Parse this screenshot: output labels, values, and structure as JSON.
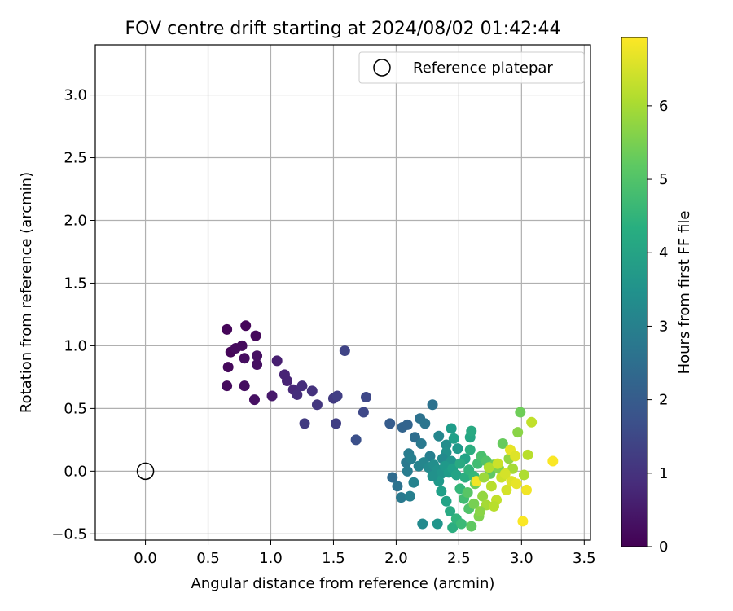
{
  "chart_data": {
    "type": "scatter",
    "title": "FOV centre drift starting at 2024/08/02 01:42:44",
    "xlabel": "Angular distance from reference (arcmin)",
    "ylabel": "Rotation from reference (arcmin)",
    "xlim": [
      -0.4,
      3.55
    ],
    "ylim": [
      -0.55,
      3.4
    ],
    "xticks": [
      "0.0",
      "0.5",
      "1.0",
      "1.5",
      "2.0",
      "2.5",
      "3.0",
      "3.5"
    ],
    "yticks": [
      "−0.5",
      "0.0",
      "0.5",
      "1.0",
      "1.5",
      "2.0",
      "2.5",
      "3.0"
    ],
    "grid": true,
    "legend": {
      "placement": "top-right",
      "entries": [
        "Reference platepar"
      ]
    },
    "reference_point": {
      "x": 0.0,
      "y": 0.0,
      "label": "Reference platepar"
    },
    "colorbar": {
      "label": "Hours from first FF file",
      "min": 0,
      "max": 6.93,
      "ticks": [
        "0",
        "1",
        "2",
        "3",
        "4",
        "5",
        "6"
      ],
      "colormap": "viridis"
    },
    "points": [
      {
        "x": 0.65,
        "y": 1.13,
        "h": 0.1
      },
      {
        "x": 0.8,
        "y": 1.16,
        "h": 0.1
      },
      {
        "x": 0.88,
        "y": 1.08,
        "h": 0.15
      },
      {
        "x": 0.68,
        "y": 0.95,
        "h": 0.1
      },
      {
        "x": 0.72,
        "y": 0.98,
        "h": 0.2
      },
      {
        "x": 0.77,
        "y": 1.0,
        "h": 0.2
      },
      {
        "x": 0.79,
        "y": 0.9,
        "h": 0.25
      },
      {
        "x": 0.89,
        "y": 0.92,
        "h": 0.3
      },
      {
        "x": 0.89,
        "y": 0.85,
        "h": 0.3
      },
      {
        "x": 0.66,
        "y": 0.83,
        "h": 0.15
      },
      {
        "x": 0.65,
        "y": 0.68,
        "h": 0.2
      },
      {
        "x": 0.79,
        "y": 0.68,
        "h": 0.25
      },
      {
        "x": 0.87,
        "y": 0.57,
        "h": 0.3
      },
      {
        "x": 1.01,
        "y": 0.6,
        "h": 0.5
      },
      {
        "x": 1.05,
        "y": 0.88,
        "h": 0.6
      },
      {
        "x": 1.11,
        "y": 0.77,
        "h": 0.7
      },
      {
        "x": 1.13,
        "y": 0.72,
        "h": 0.7
      },
      {
        "x": 1.18,
        "y": 0.65,
        "h": 0.8
      },
      {
        "x": 1.21,
        "y": 0.61,
        "h": 0.9
      },
      {
        "x": 1.25,
        "y": 0.68,
        "h": 0.9
      },
      {
        "x": 1.33,
        "y": 0.64,
        "h": 1.0
      },
      {
        "x": 1.37,
        "y": 0.53,
        "h": 1.1
      },
      {
        "x": 1.27,
        "y": 0.38,
        "h": 1.2
      },
      {
        "x": 1.5,
        "y": 0.58,
        "h": 1.2
      },
      {
        "x": 1.53,
        "y": 0.6,
        "h": 1.3
      },
      {
        "x": 1.52,
        "y": 0.38,
        "h": 1.3
      },
      {
        "x": 1.59,
        "y": 0.96,
        "h": 1.4
      },
      {
        "x": 1.74,
        "y": 0.47,
        "h": 1.5
      },
      {
        "x": 1.76,
        "y": 0.59,
        "h": 1.5
      },
      {
        "x": 1.68,
        "y": 0.25,
        "h": 1.7
      },
      {
        "x": 1.95,
        "y": 0.38,
        "h": 2.0
      },
      {
        "x": 2.05,
        "y": 0.35,
        "h": 2.2
      },
      {
        "x": 2.09,
        "y": 0.37,
        "h": 2.2
      },
      {
        "x": 2.15,
        "y": 0.27,
        "h": 2.5
      },
      {
        "x": 2.19,
        "y": 0.42,
        "h": 2.6
      },
      {
        "x": 2.23,
        "y": 0.38,
        "h": 2.7
      },
      {
        "x": 2.29,
        "y": 0.53,
        "h": 2.6
      },
      {
        "x": 2.2,
        "y": 0.22,
        "h": 2.8
      },
      {
        "x": 2.27,
        "y": 0.12,
        "h": 3.0
      },
      {
        "x": 2.34,
        "y": 0.28,
        "h": 3.2
      },
      {
        "x": 2.4,
        "y": 0.21,
        "h": 3.4
      },
      {
        "x": 2.44,
        "y": 0.34,
        "h": 3.8
      },
      {
        "x": 2.46,
        "y": 0.26,
        "h": 3.9
      },
      {
        "x": 2.4,
        "y": 0.15,
        "h": 3.5
      },
      {
        "x": 2.37,
        "y": 0.1,
        "h": 3.3
      },
      {
        "x": 2.44,
        "y": 0.08,
        "h": 3.6
      },
      {
        "x": 2.49,
        "y": 0.18,
        "h": 3.7
      },
      {
        "x": 2.55,
        "y": 0.1,
        "h": 4.0
      },
      {
        "x": 2.59,
        "y": 0.27,
        "h": 4.1
      },
      {
        "x": 2.6,
        "y": 0.32,
        "h": 4.2
      },
      {
        "x": 2.59,
        "y": 0.17,
        "h": 4.3
      },
      {
        "x": 2.1,
        "y": 0.14,
        "h": 2.9
      },
      {
        "x": 2.08,
        "y": 0.07,
        "h": 2.8
      },
      {
        "x": 2.09,
        "y": 0.0,
        "h": 2.9
      },
      {
        "x": 2.12,
        "y": 0.1,
        "h": 3.0
      },
      {
        "x": 2.18,
        "y": 0.04,
        "h": 3.1
      },
      {
        "x": 2.22,
        "y": 0.07,
        "h": 3.2
      },
      {
        "x": 2.26,
        "y": 0.03,
        "h": 3.3
      },
      {
        "x": 2.3,
        "y": 0.05,
        "h": 3.4
      },
      {
        "x": 2.33,
        "y": 0.01,
        "h": 3.5
      },
      {
        "x": 2.36,
        "y": -0.02,
        "h": 3.6
      },
      {
        "x": 2.39,
        "y": 0.04,
        "h": 3.7
      },
      {
        "x": 2.42,
        "y": -0.01,
        "h": 3.8
      },
      {
        "x": 2.45,
        "y": 0.02,
        "h": 3.9
      },
      {
        "x": 2.48,
        "y": -0.03,
        "h": 4.0
      },
      {
        "x": 2.51,
        "y": 0.06,
        "h": 4.2
      },
      {
        "x": 2.55,
        "y": -0.05,
        "h": 4.3
      },
      {
        "x": 2.58,
        "y": 0.01,
        "h": 4.5
      },
      {
        "x": 2.62,
        "y": -0.04,
        "h": 4.6
      },
      {
        "x": 2.65,
        "y": 0.06,
        "h": 4.8
      },
      {
        "x": 2.68,
        "y": 0.12,
        "h": 4.9
      },
      {
        "x": 2.72,
        "y": 0.08,
        "h": 5.0
      },
      {
        "x": 2.75,
        "y": -0.02,
        "h": 5.2
      },
      {
        "x": 2.78,
        "y": 0.05,
        "h": 5.4
      },
      {
        "x": 2.82,
        "y": 0.02,
        "h": 5.6
      },
      {
        "x": 2.85,
        "y": 0.22,
        "h": 5.3
      },
      {
        "x": 2.9,
        "y": 0.1,
        "h": 5.8
      },
      {
        "x": 2.93,
        "y": 0.02,
        "h": 6.0
      },
      {
        "x": 2.97,
        "y": 0.31,
        "h": 5.7
      },
      {
        "x": 2.99,
        "y": 0.47,
        "h": 5.4
      },
      {
        "x": 3.02,
        "y": -0.03,
        "h": 6.1
      },
      {
        "x": 3.05,
        "y": 0.13,
        "h": 6.2
      },
      {
        "x": 3.08,
        "y": 0.39,
        "h": 6.3
      },
      {
        "x": 3.25,
        "y": 0.08,
        "h": 6.9
      },
      {
        "x": 1.97,
        "y": -0.05,
        "h": 2.4
      },
      {
        "x": 2.01,
        "y": -0.12,
        "h": 2.6
      },
      {
        "x": 2.04,
        "y": -0.21,
        "h": 2.8
      },
      {
        "x": 2.11,
        "y": -0.2,
        "h": 3.0
      },
      {
        "x": 2.14,
        "y": -0.09,
        "h": 3.1
      },
      {
        "x": 2.21,
        "y": -0.42,
        "h": 3.3
      },
      {
        "x": 2.33,
        "y": -0.42,
        "h": 3.6
      },
      {
        "x": 2.36,
        "y": -0.16,
        "h": 3.9
      },
      {
        "x": 2.4,
        "y": -0.24,
        "h": 4.0
      },
      {
        "x": 2.43,
        "y": -0.32,
        "h": 4.2
      },
      {
        "x": 2.45,
        "y": -0.45,
        "h": 4.3
      },
      {
        "x": 2.48,
        "y": -0.38,
        "h": 4.5
      },
      {
        "x": 2.51,
        "y": -0.14,
        "h": 4.6
      },
      {
        "x": 2.54,
        "y": -0.22,
        "h": 4.8
      },
      {
        "x": 2.58,
        "y": -0.3,
        "h": 5.0
      },
      {
        "x": 2.6,
        "y": -0.44,
        "h": 5.2
      },
      {
        "x": 2.63,
        "y": -0.1,
        "h": 5.4
      },
      {
        "x": 2.66,
        "y": -0.36,
        "h": 5.6
      },
      {
        "x": 2.69,
        "y": -0.2,
        "h": 5.8
      },
      {
        "x": 2.72,
        "y": -0.27,
        "h": 6.0
      },
      {
        "x": 2.76,
        "y": -0.12,
        "h": 6.2
      },
      {
        "x": 2.8,
        "y": -0.23,
        "h": 6.3
      },
      {
        "x": 2.84,
        "y": -0.05,
        "h": 6.4
      },
      {
        "x": 2.88,
        "y": -0.15,
        "h": 6.5
      },
      {
        "x": 2.92,
        "y": -0.08,
        "h": 6.6
      },
      {
        "x": 2.96,
        "y": -0.1,
        "h": 6.7
      },
      {
        "x": 3.01,
        "y": -0.4,
        "h": 6.9
      },
      {
        "x": 3.04,
        "y": -0.15,
        "h": 6.8
      },
      {
        "x": 2.64,
        "y": -0.08,
        "h": 6.8
      },
      {
        "x": 2.52,
        "y": -0.42,
        "h": 4.7
      },
      {
        "x": 2.57,
        "y": -0.17,
        "h": 5.1
      },
      {
        "x": 2.7,
        "y": -0.05,
        "h": 5.9
      },
      {
        "x": 2.74,
        "y": 0.03,
        "h": 6.1
      },
      {
        "x": 2.81,
        "y": 0.06,
        "h": 6.4
      },
      {
        "x": 2.87,
        "y": -0.02,
        "h": 6.5
      },
      {
        "x": 2.91,
        "y": 0.17,
        "h": 6.7
      },
      {
        "x": 2.95,
        "y": 0.12,
        "h": 6.6
      },
      {
        "x": 2.62,
        "y": -0.26,
        "h": 5.5
      },
      {
        "x": 2.67,
        "y": -0.32,
        "h": 5.7
      },
      {
        "x": 2.78,
        "y": -0.28,
        "h": 6.2
      },
      {
        "x": 2.34,
        "y": -0.08,
        "h": 3.7
      },
      {
        "x": 2.29,
        "y": -0.04,
        "h": 3.5
      }
    ]
  }
}
